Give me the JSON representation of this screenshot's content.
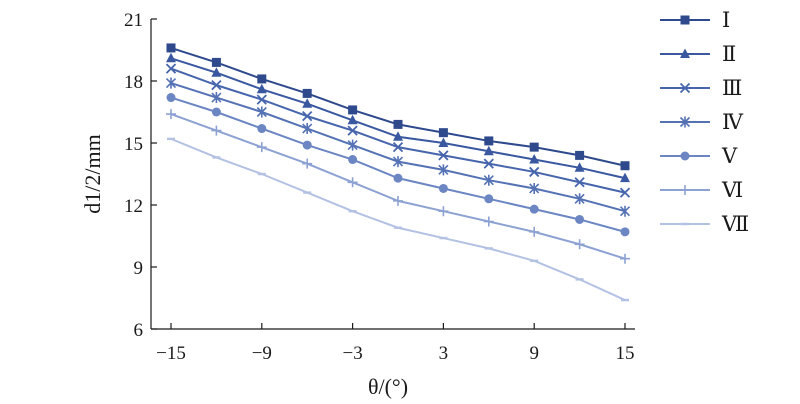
{
  "chart_data": {
    "type": "line",
    "xlabel": "θ/(°)",
    "ylabel": "d1/2/mm",
    "xlim": [
      -15,
      15
    ],
    "ylim": [
      6,
      21
    ],
    "xticks": [
      -15,
      -9,
      -3,
      3,
      9,
      15
    ],
    "yticks": [
      6,
      9,
      12,
      15,
      18,
      21
    ],
    "xtick_labels": [
      "−15",
      "−9",
      "−3",
      "3",
      "9",
      "15"
    ],
    "ytick_labels": [
      "6",
      "9",
      "12",
      "15",
      "18",
      "21"
    ],
    "grid": false,
    "legend_position": "right",
    "x": [
      -15,
      -12,
      -9,
      -6,
      -3,
      0,
      3,
      6,
      9,
      12,
      15
    ],
    "series": [
      {
        "name": "Ⅰ",
        "marker": "square",
        "color": "#2e4a8c",
        "values": [
          19.6,
          18.9,
          18.1,
          17.4,
          16.6,
          15.9,
          15.5,
          15.1,
          14.8,
          14.4,
          13.9
        ]
      },
      {
        "name": "Ⅱ",
        "marker": "triangle",
        "color": "#3a58a0",
        "values": [
          19.1,
          18.4,
          17.6,
          16.9,
          16.1,
          15.3,
          15.0,
          14.6,
          14.2,
          13.8,
          13.3
        ]
      },
      {
        "name": "Ⅲ",
        "marker": "x",
        "color": "#4665ac",
        "values": [
          18.6,
          17.8,
          17.1,
          16.3,
          15.6,
          14.8,
          14.4,
          14.0,
          13.6,
          13.1,
          12.6
        ]
      },
      {
        "name": "Ⅳ",
        "marker": "asterisk",
        "color": "#5472b4",
        "values": [
          17.9,
          17.2,
          16.5,
          15.7,
          14.9,
          14.1,
          13.7,
          13.2,
          12.8,
          12.3,
          11.7
        ]
      },
      {
        "name": "Ⅴ",
        "marker": "circle",
        "color": "#6b86c2",
        "values": [
          17.2,
          16.5,
          15.7,
          14.9,
          14.2,
          13.3,
          12.8,
          12.3,
          11.8,
          11.3,
          10.7
        ]
      },
      {
        "name": "Ⅵ",
        "marker": "plus",
        "color": "#8da2d2",
        "values": [
          16.4,
          15.6,
          14.8,
          14.0,
          13.1,
          12.2,
          11.7,
          11.2,
          10.7,
          10.1,
          9.4
        ]
      },
      {
        "name": "Ⅶ",
        "marker": "dash",
        "color": "#b3c1e2",
        "values": [
          15.2,
          14.3,
          13.5,
          12.6,
          11.7,
          10.9,
          10.4,
          9.9,
          9.3,
          8.4,
          7.4
        ]
      }
    ]
  }
}
